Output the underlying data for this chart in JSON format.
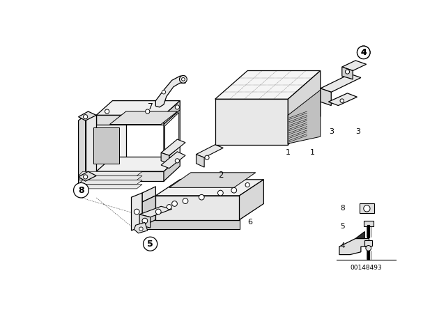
{
  "bg_color": "#ffffff",
  "line_color": "#000000",
  "fig_width": 6.4,
  "fig_height": 4.48,
  "dpi": 100,
  "part_number": "00148493"
}
